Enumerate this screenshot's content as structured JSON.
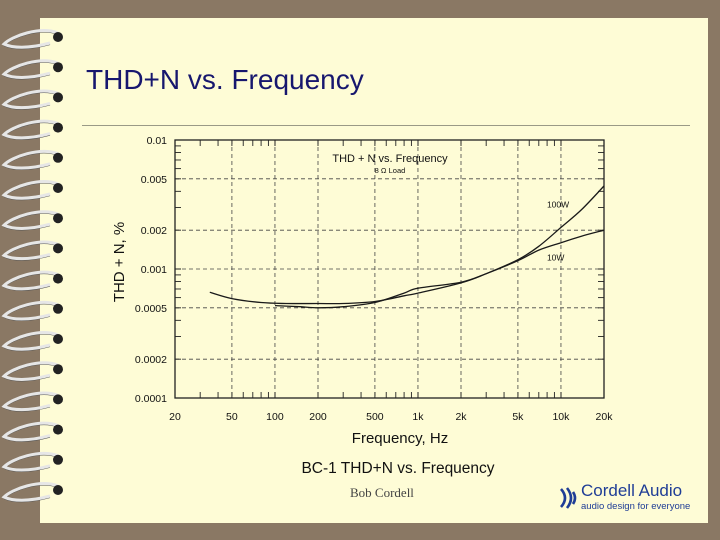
{
  "slide": {
    "title": "THD+N vs. Frequency",
    "author": "Bob Cordell",
    "logo": {
      "name": "Cordell Audio",
      "tagline": "audio design for everyone"
    }
  },
  "chart_data": {
    "type": "line",
    "title": "THD + N vs. Frequency",
    "subtitle": "8 Ω Load",
    "caption": "BC-1 THD+N vs. Frequency",
    "xlabel": "Frequency, Hz",
    "ylabel": "THD + N, %",
    "x_scale": "log",
    "y_scale": "log",
    "xlim": [
      20,
      20000
    ],
    "ylim": [
      0.0001,
      0.01
    ],
    "x_ticks": [
      20,
      50,
      100,
      200,
      500,
      1000,
      2000,
      5000,
      10000,
      20000
    ],
    "x_tick_labels": [
      "20",
      "50",
      "100",
      "200",
      "500",
      "1k",
      "2k",
      "5k",
      "10k",
      "20k"
    ],
    "y_ticks": [
      0.0001,
      0.0002,
      0.0005,
      0.001,
      0.002,
      0.005,
      0.01
    ],
    "y_tick_labels": [
      "0.0001",
      "0.0002",
      "0.0005",
      "0.001",
      "0.002",
      "0.005",
      "0.01"
    ],
    "grid": true,
    "series": [
      {
        "name": "100W",
        "x": [
          35,
          50,
          80,
          120,
          200,
          300,
          500,
          800,
          1000,
          2000,
          3000,
          5000,
          7000,
          10000,
          14000,
          20000
        ],
        "y": [
          0.00066,
          0.00059,
          0.00055,
          0.00054,
          0.00054,
          0.00054,
          0.00056,
          0.00062,
          0.00065,
          0.00078,
          0.00092,
          0.00118,
          0.0015,
          0.0021,
          0.0029,
          0.0044
        ]
      },
      {
        "name": "10W",
        "x": [
          100,
          150,
          200,
          300,
          500,
          800,
          1000,
          2000,
          3000,
          5000,
          7000,
          10000,
          14000,
          20000
        ],
        "y": [
          0.00052,
          0.00051,
          0.0005,
          0.00051,
          0.00055,
          0.00065,
          0.00071,
          0.00079,
          0.00092,
          0.00116,
          0.0014,
          0.0016,
          0.0018,
          0.002
        ]
      }
    ]
  }
}
